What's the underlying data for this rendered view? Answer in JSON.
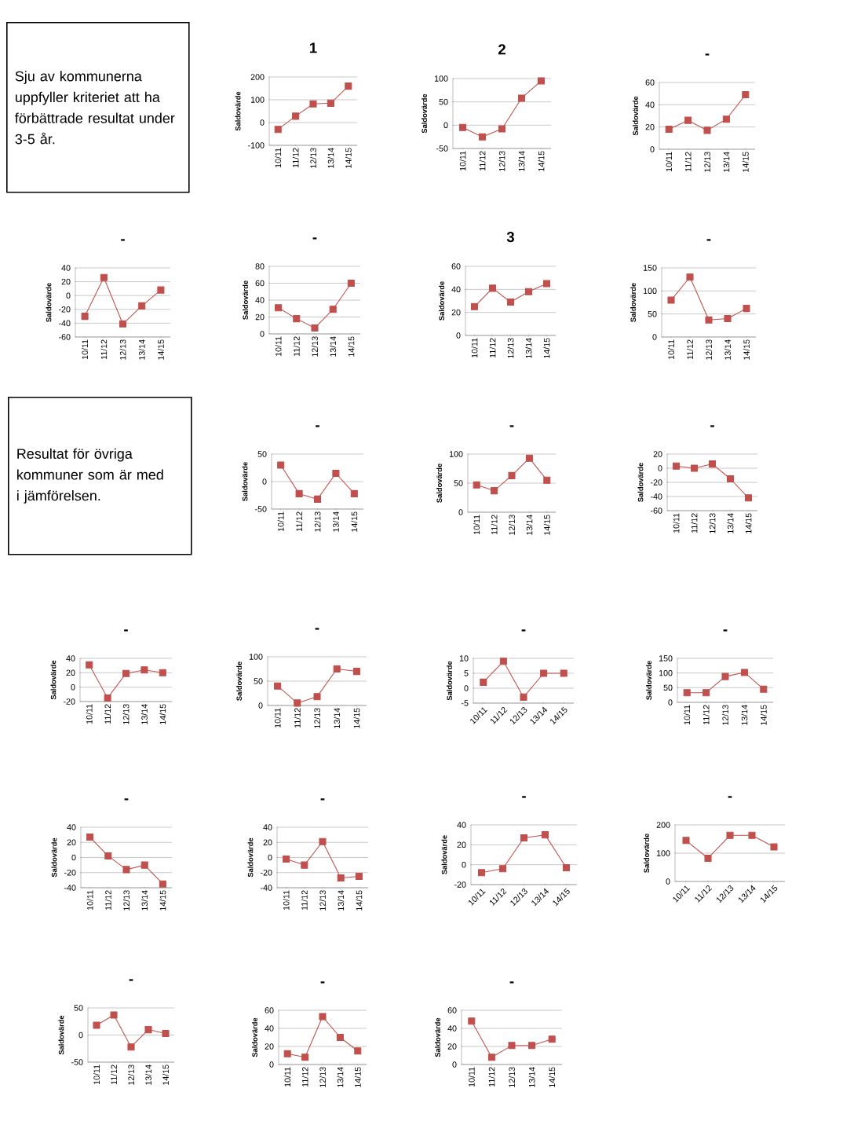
{
  "chart_data": [
    {
      "type": "other",
      "annotations": [
        "Sju av kommunerna uppfyller kriteriet att ha förbättrade resultat under 3-5 år."
      ]
    },
    {
      "type": "line",
      "title": "1",
      "ylabel": "Saldovärde",
      "categories": [
        "10/11",
        "11/12",
        "12/13",
        "13/14",
        "14/15"
      ],
      "series": [
        {
          "color": "#c0504d",
          "values": [
            -30,
            28,
            82,
            85,
            160
          ]
        }
      ],
      "ylim": [
        -100,
        200
      ],
      "yticks": [
        -100,
        0,
        100,
        200
      ],
      "grid": "y",
      "marker": "square"
    },
    {
      "type": "line",
      "title": "2",
      "ylabel": "Saldovärde",
      "categories": [
        "10/11",
        "11/12",
        "12/13",
        "13/14",
        "14/15"
      ],
      "series": [
        {
          "color": "#c0504d",
          "values": [
            -5,
            -25,
            -8,
            58,
            95
          ]
        }
      ],
      "ylim": [
        -50,
        100
      ],
      "yticks": [
        -50,
        0,
        50,
        100
      ],
      "grid": "y",
      "marker": "square"
    },
    {
      "type": "line",
      "title": "-",
      "ylabel": "Saldovärde",
      "categories": [
        "10/11",
        "11/12",
        "12/13",
        "13/14",
        "14/15"
      ],
      "series": [
        {
          "color": "#c0504d",
          "values": [
            18,
            26,
            17,
            27,
            49
          ]
        }
      ],
      "ylim": [
        0,
        60
      ],
      "yticks": [
        0,
        20,
        40,
        60
      ],
      "grid": "y",
      "marker": "square"
    },
    {
      "type": "line",
      "title": "-",
      "ylabel": "Saldovärde",
      "categories": [
        "10/11",
        "11/12",
        "12/13",
        "13/14",
        "14/15"
      ],
      "series": [
        {
          "color": "#c0504d",
          "values": [
            -30,
            26,
            -41,
            -15,
            8
          ]
        }
      ],
      "ylim": [
        -60,
        40
      ],
      "yticks": [
        -60,
        -40,
        -20,
        0,
        20,
        40
      ],
      "grid": "y",
      "marker": "square"
    },
    {
      "type": "line",
      "title": "-",
      "ylabel": "Saldovärde",
      "categories": [
        "10/11",
        "11/12",
        "12/13",
        "13/14",
        "14/15"
      ],
      "series": [
        {
          "color": "#c0504d",
          "values": [
            31,
            18,
            7,
            29,
            60
          ]
        }
      ],
      "ylim": [
        0,
        80
      ],
      "yticks": [
        0,
        20,
        40,
        60,
        80
      ],
      "grid": "y",
      "marker": "square"
    },
    {
      "type": "line",
      "title": "3",
      "ylabel": "Saldovärde",
      "categories": [
        "10/11",
        "11/12",
        "12/13",
        "13/14",
        "14/15"
      ],
      "series": [
        {
          "color": "#c0504d",
          "values": [
            25,
            41,
            29,
            38,
            45
          ]
        }
      ],
      "ylim": [
        0,
        60
      ],
      "yticks": [
        0,
        20,
        40,
        60
      ],
      "grid": "y",
      "marker": "square"
    },
    {
      "type": "line",
      "title": "-",
      "ylabel": "Saldovärde",
      "categories": [
        "10/11",
        "11/12",
        "12/13",
        "13/14",
        "14/15"
      ],
      "series": [
        {
          "color": "#c0504d",
          "values": [
            80,
            130,
            37,
            40,
            62
          ]
        }
      ],
      "ylim": [
        0,
        150
      ],
      "yticks": [
        0,
        50,
        100,
        150
      ],
      "grid": "y",
      "marker": "square"
    },
    {
      "type": "other",
      "annotations": [
        "Resultat för övriga kommuner som är med i jämförelsen."
      ]
    },
    {
      "type": "line",
      "title": "-",
      "ylabel": "Saldovärde",
      "categories": [
        "10/11",
        "11/12",
        "12/13",
        "13/14",
        "14/15"
      ],
      "series": [
        {
          "color": "#c0504d",
          "values": [
            30,
            -22,
            -32,
            15,
            -22
          ]
        }
      ],
      "ylim": [
        -50,
        50
      ],
      "yticks": [
        -50,
        0,
        50
      ],
      "grid": "y",
      "marker": "square"
    },
    {
      "type": "line",
      "title": "-",
      "ylabel": "Saldovärde",
      "categories": [
        "10/11",
        "11/12",
        "12/13",
        "13/14",
        "14/15"
      ],
      "series": [
        {
          "color": "#c0504d",
          "values": [
            47,
            37,
            63,
            93,
            55
          ]
        }
      ],
      "ylim": [
        0,
        100
      ],
      "yticks": [
        0,
        50,
        100
      ],
      "grid": "y",
      "marker": "square"
    },
    {
      "type": "line",
      "title": "-",
      "ylabel": "Saldovärde",
      "categories": [
        "10/11",
        "11/12",
        "12/13",
        "13/14",
        "14/15"
      ],
      "series": [
        {
          "color": "#c0504d",
          "values": [
            3,
            0,
            6,
            -15,
            -42
          ]
        }
      ],
      "ylim": [
        -60,
        20
      ],
      "yticks": [
        -60,
        -40,
        -20,
        0,
        20
      ],
      "grid": "y",
      "marker": "square"
    },
    {
      "type": "line",
      "title": "-",
      "ylabel": "Saldovärde",
      "categories": [
        "10/11",
        "11/12",
        "12/13",
        "13/14",
        "14/15"
      ],
      "series": [
        {
          "color": "#c0504d",
          "values": [
            31,
            -15,
            19,
            24,
            20
          ]
        }
      ],
      "ylim": [
        -20,
        40
      ],
      "yticks": [
        -20,
        0,
        20,
        40
      ],
      "grid": "y",
      "marker": "square"
    },
    {
      "type": "line",
      "title": "-",
      "ylabel": "Saldovärde",
      "categories": [
        "10/11",
        "11/12",
        "12/13",
        "13/14",
        "14/15"
      ],
      "series": [
        {
          "color": "#c0504d",
          "values": [
            40,
            5,
            18,
            75,
            70
          ]
        }
      ],
      "ylim": [
        0,
        100
      ],
      "yticks": [
        0,
        50,
        100
      ],
      "grid": "y",
      "marker": "square"
    },
    {
      "type": "line",
      "title": "-",
      "ylabel": "Saldovärde",
      "categories": [
        "10/11",
        "11/12",
        "12/13",
        "13/14",
        "14/15"
      ],
      "series": [
        {
          "color": "#c0504d",
          "values": [
            2,
            9,
            -3,
            5,
            5
          ]
        }
      ],
      "ylim": [
        -5,
        10
      ],
      "yticks": [
        -5,
        0,
        5,
        10
      ],
      "grid": "y",
      "marker": "square"
    },
    {
      "type": "line",
      "title": "-",
      "ylabel": "Saldovärde",
      "categories": [
        "10/11",
        "11/12",
        "12/13",
        "13/14",
        "14/15"
      ],
      "series": [
        {
          "color": "#c0504d",
          "values": [
            33,
            33,
            88,
            102,
            45
          ]
        }
      ],
      "ylim": [
        0,
        150
      ],
      "yticks": [
        0,
        50,
        100,
        150
      ],
      "grid": "y",
      "marker": "square"
    },
    {
      "type": "line",
      "title": "-",
      "ylabel": "Saldovärde",
      "categories": [
        "10/11",
        "11/12",
        "12/13",
        "13/14",
        "14/15"
      ],
      "series": [
        {
          "color": "#c0504d",
          "values": [
            27,
            2,
            -16,
            -10,
            -35
          ]
        }
      ],
      "ylim": [
        -40,
        40
      ],
      "yticks": [
        -40,
        -20,
        0,
        20,
        40
      ],
      "grid": "y",
      "marker": "square"
    },
    {
      "type": "line",
      "title": "-",
      "ylabel": "Saldovärde",
      "categories": [
        "10/11",
        "11/12",
        "12/13",
        "13/14",
        "14/15"
      ],
      "series": [
        {
          "color": "#c0504d",
          "values": [
            -2,
            -10,
            21,
            -27,
            -25
          ]
        }
      ],
      "ylim": [
        -40,
        40
      ],
      "yticks": [
        -40,
        -20,
        0,
        20,
        40
      ],
      "grid": "y",
      "marker": "square"
    },
    {
      "type": "line",
      "title": "-",
      "ylabel": "Saldovärde",
      "categories": [
        "10/11",
        "11/12",
        "12/13",
        "13/14",
        "14/15"
      ],
      "series": [
        {
          "color": "#c0504d",
          "values": [
            -8,
            -4,
            27,
            30,
            -3
          ]
        }
      ],
      "ylim": [
        -20,
        40
      ],
      "yticks": [
        -20,
        0,
        20,
        40
      ],
      "grid": "y",
      "marker": "square"
    },
    {
      "type": "line",
      "title": "-",
      "ylabel": "Saldovärde",
      "categories": [
        "10/11",
        "11/12",
        "12/13",
        "13/14",
        "14/15"
      ],
      "series": [
        {
          "color": "#c0504d",
          "values": [
            145,
            82,
            163,
            163,
            122
          ]
        }
      ],
      "ylim": [
        0,
        200
      ],
      "yticks": [
        0,
        100,
        200
      ],
      "grid": "y",
      "marker": "square"
    },
    {
      "type": "line",
      "title": "-",
      "ylabel": "Saldovärde",
      "categories": [
        "10/11",
        "11/12",
        "12/13",
        "13/14",
        "14/15"
      ],
      "series": [
        {
          "color": "#c0504d",
          "values": [
            18,
            37,
            -22,
            10,
            3
          ]
        }
      ],
      "ylim": [
        -50,
        50
      ],
      "yticks": [
        -50,
        0,
        50
      ],
      "grid": "y",
      "marker": "square"
    },
    {
      "type": "line",
      "title": "-",
      "ylabel": "Saldovärde",
      "categories": [
        "10/11",
        "11/12",
        "12/13",
        "13/14",
        "14/15"
      ],
      "series": [
        {
          "color": "#c0504d",
          "values": [
            12,
            8,
            53,
            30,
            15
          ]
        }
      ],
      "ylim": [
        0,
        60
      ],
      "yticks": [
        0,
        20,
        40,
        60
      ],
      "grid": "y",
      "marker": "square"
    },
    {
      "type": "line",
      "title": "-",
      "ylabel": "Saldovärde",
      "categories": [
        "10/11",
        "11/12",
        "12/13",
        "13/14",
        "14/15"
      ],
      "series": [
        {
          "color": "#c0504d",
          "values": [
            48,
            8,
            21,
            21,
            28
          ]
        }
      ],
      "ylim": [
        0,
        60
      ],
      "yticks": [
        0,
        20,
        40,
        60
      ],
      "grid": "y",
      "marker": "square"
    }
  ]
}
